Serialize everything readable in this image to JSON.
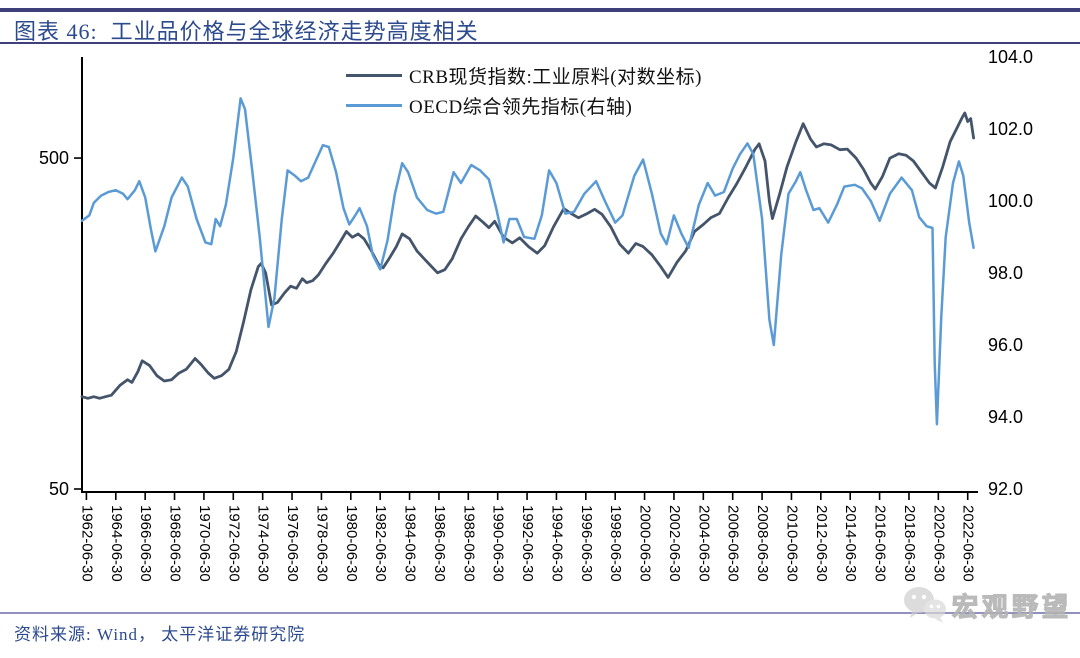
{
  "header": {
    "title": "图表 46:  工业品价格与全球经济走势高度相关"
  },
  "source": {
    "text": "资料来源:  Wind， 太平洋证券研究院"
  },
  "watermark": {
    "text": "宏观野望",
    "icon": "wechat-icon"
  },
  "colors": {
    "accent_bar": "#3f3f7c",
    "title_text": "#2c4a8e",
    "crb_line": "#44546a",
    "oecd_line": "#5b9bd5",
    "axis": "#000000",
    "source_rule": "#9191bd"
  },
  "chart_data": {
    "type": "line",
    "title": "工业品价格与全球经济走势高度相关",
    "legend_position": "top-center",
    "grid": false,
    "x_axis": {
      "first_tick_year": 1962.5,
      "tick_step_years": 2,
      "range_years": [
        1962.2,
        2023.2
      ],
      "tick_labels": [
        "1962-06-30",
        "1964-06-30",
        "1966-06-30",
        "1968-06-30",
        "1970-06-30",
        "1972-06-30",
        "1974-06-30",
        "1976-06-30",
        "1978-06-30",
        "1980-06-30",
        "1982-06-30",
        "1984-06-30",
        "1986-06-30",
        "1988-06-30",
        "1990-06-30",
        "1992-06-30",
        "1994-06-30",
        "1996-06-30",
        "1998-06-30",
        "2000-06-30",
        "2002-06-30",
        "2004-06-30",
        "2006-06-30",
        "2008-06-30",
        "2010-06-30",
        "2012-06-30",
        "2014-06-30",
        "2016-06-30",
        "2018-06-30",
        "2020-06-30",
        "2022-06-30"
      ]
    },
    "left_axis": {
      "scale": "log",
      "range": [
        50,
        1010
      ],
      "ticks": [
        500,
        50
      ],
      "tick_labels": [
        "500",
        "50"
      ]
    },
    "right_axis": {
      "scale": "linear",
      "range": [
        92,
        104
      ],
      "ticks": [
        104,
        102,
        100,
        98,
        96,
        94,
        92
      ],
      "tick_labels": [
        "104.0",
        "102.0",
        "100.0",
        "98.0",
        "96.0",
        "94.0",
        "92.0"
      ]
    },
    "series": [
      {
        "name": "CRB现货指数:工业原料(对数坐标)",
        "axis": "left",
        "color": "#44546a",
        "width": 2.8,
        "points": [
          [
            1962.2,
            95
          ],
          [
            1962.6,
            94
          ],
          [
            1963.0,
            95
          ],
          [
            1963.4,
            94
          ],
          [
            1963.8,
            95
          ],
          [
            1964.2,
            96
          ],
          [
            1964.8,
            103
          ],
          [
            1965.3,
            107
          ],
          [
            1965.6,
            105
          ],
          [
            1966.0,
            113
          ],
          [
            1966.3,
            122
          ],
          [
            1966.8,
            118
          ],
          [
            1967.3,
            110
          ],
          [
            1967.8,
            106
          ],
          [
            1968.3,
            107
          ],
          [
            1968.8,
            112
          ],
          [
            1969.3,
            115
          ],
          [
            1969.9,
            124
          ],
          [
            1970.3,
            119
          ],
          [
            1970.8,
            112
          ],
          [
            1971.2,
            108
          ],
          [
            1971.7,
            110
          ],
          [
            1972.2,
            115
          ],
          [
            1972.7,
            130
          ],
          [
            1973.2,
            160
          ],
          [
            1973.7,
            200
          ],
          [
            1974.2,
            235
          ],
          [
            1974.4,
            240
          ],
          [
            1974.7,
            225
          ],
          [
            1975.1,
            180
          ],
          [
            1975.5,
            183
          ],
          [
            1976.0,
            196
          ],
          [
            1976.4,
            205
          ],
          [
            1976.8,
            202
          ],
          [
            1977.2,
            216
          ],
          [
            1977.5,
            210
          ],
          [
            1977.9,
            213
          ],
          [
            1978.3,
            222
          ],
          [
            1978.8,
            240
          ],
          [
            1979.3,
            258
          ],
          [
            1979.8,
            280
          ],
          [
            1980.2,
            300
          ],
          [
            1980.6,
            288
          ],
          [
            1981.0,
            295
          ],
          [
            1981.4,
            285
          ],
          [
            1981.9,
            262
          ],
          [
            1982.4,
            238
          ],
          [
            1982.7,
            233
          ],
          [
            1983.1,
            248
          ],
          [
            1983.6,
            270
          ],
          [
            1984.0,
            295
          ],
          [
            1984.5,
            285
          ],
          [
            1985.0,
            262
          ],
          [
            1985.5,
            248
          ],
          [
            1986.0,
            235
          ],
          [
            1986.4,
            225
          ],
          [
            1986.9,
            230
          ],
          [
            1987.4,
            248
          ],
          [
            1988.0,
            285
          ],
          [
            1988.5,
            310
          ],
          [
            1989.0,
            334
          ],
          [
            1989.5,
            320
          ],
          [
            1989.9,
            308
          ],
          [
            1990.3,
            322
          ],
          [
            1990.9,
            288
          ],
          [
            1991.5,
            277
          ],
          [
            1992.0,
            287
          ],
          [
            1992.6,
            270
          ],
          [
            1993.2,
            258
          ],
          [
            1993.7,
            272
          ],
          [
            1994.3,
            310
          ],
          [
            1995.0,
            352
          ],
          [
            1995.5,
            340
          ],
          [
            1996.0,
            330
          ],
          [
            1996.6,
            340
          ],
          [
            1997.1,
            350
          ],
          [
            1997.6,
            338
          ],
          [
            1998.2,
            310
          ],
          [
            1998.8,
            275
          ],
          [
            1999.4,
            258
          ],
          [
            1999.9,
            276
          ],
          [
            2000.4,
            270
          ],
          [
            2001.0,
            255
          ],
          [
            2001.6,
            235
          ],
          [
            2002.1,
            218
          ],
          [
            2002.7,
            242
          ],
          [
            2003.3,
            262
          ],
          [
            2003.9,
            300
          ],
          [
            2004.5,
            315
          ],
          [
            2005.0,
            330
          ],
          [
            2005.6,
            340
          ],
          [
            2006.2,
            380
          ],
          [
            2006.8,
            420
          ],
          [
            2007.4,
            470
          ],
          [
            2008.0,
            530
          ],
          [
            2008.3,
            552
          ],
          [
            2008.7,
            490
          ],
          [
            2009.0,
            370
          ],
          [
            2009.2,
            328
          ],
          [
            2009.7,
            390
          ],
          [
            2010.2,
            470
          ],
          [
            2010.8,
            560
          ],
          [
            2011.3,
            635
          ],
          [
            2011.8,
            570
          ],
          [
            2012.2,
            540
          ],
          [
            2012.7,
            552
          ],
          [
            2013.2,
            548
          ],
          [
            2013.8,
            530
          ],
          [
            2014.3,
            532
          ],
          [
            2014.9,
            500
          ],
          [
            2015.4,
            463
          ],
          [
            2015.9,
            420
          ],
          [
            2016.2,
            403
          ],
          [
            2016.7,
            440
          ],
          [
            2017.2,
            500
          ],
          [
            2017.8,
            515
          ],
          [
            2018.3,
            510
          ],
          [
            2018.8,
            490
          ],
          [
            2019.3,
            457
          ],
          [
            2019.9,
            420
          ],
          [
            2020.3,
            406
          ],
          [
            2020.8,
            470
          ],
          [
            2021.3,
            560
          ],
          [
            2021.8,
            620
          ],
          [
            2022.1,
            660
          ],
          [
            2022.3,
            684
          ],
          [
            2022.5,
            645
          ],
          [
            2022.7,
            658
          ],
          [
            2022.9,
            575
          ]
        ]
      },
      {
        "name": "OECD综合领先指标(右轴)",
        "axis": "right",
        "color": "#5b9bd5",
        "width": 2.5,
        "points": [
          [
            1962.2,
            99.45
          ],
          [
            1962.7,
            99.6
          ],
          [
            1963.0,
            99.95
          ],
          [
            1963.5,
            100.15
          ],
          [
            1964.0,
            100.25
          ],
          [
            1964.5,
            100.3
          ],
          [
            1965.0,
            100.2
          ],
          [
            1965.3,
            100.05
          ],
          [
            1965.8,
            100.3
          ],
          [
            1966.1,
            100.55
          ],
          [
            1966.5,
            100.1
          ],
          [
            1966.9,
            99.2
          ],
          [
            1967.2,
            98.6
          ],
          [
            1967.8,
            99.3
          ],
          [
            1968.3,
            100.1
          ],
          [
            1969.0,
            100.65
          ],
          [
            1969.4,
            100.4
          ],
          [
            1970.0,
            99.5
          ],
          [
            1970.6,
            98.85
          ],
          [
            1971.0,
            98.8
          ],
          [
            1971.3,
            99.5
          ],
          [
            1971.6,
            99.3
          ],
          [
            1972.0,
            99.9
          ],
          [
            1972.5,
            101.2
          ],
          [
            1973.0,
            102.85
          ],
          [
            1973.3,
            102.55
          ],
          [
            1973.8,
            100.8
          ],
          [
            1974.3,
            99.0
          ],
          [
            1974.9,
            96.5
          ],
          [
            1975.3,
            97.3
          ],
          [
            1975.8,
            99.5
          ],
          [
            1976.2,
            100.85
          ],
          [
            1976.7,
            100.7
          ],
          [
            1977.1,
            100.55
          ],
          [
            1977.6,
            100.65
          ],
          [
            1978.1,
            101.1
          ],
          [
            1978.6,
            101.55
          ],
          [
            1979.0,
            101.5
          ],
          [
            1979.5,
            100.8
          ],
          [
            1980.0,
            99.8
          ],
          [
            1980.4,
            99.35
          ],
          [
            1980.8,
            99.6
          ],
          [
            1981.1,
            99.8
          ],
          [
            1981.6,
            99.3
          ],
          [
            1982.0,
            98.5
          ],
          [
            1982.5,
            98.1
          ],
          [
            1983.0,
            98.9
          ],
          [
            1983.5,
            100.2
          ],
          [
            1984.0,
            101.05
          ],
          [
            1984.4,
            100.8
          ],
          [
            1985.0,
            100.1
          ],
          [
            1985.7,
            99.75
          ],
          [
            1986.3,
            99.65
          ],
          [
            1986.8,
            99.7
          ],
          [
            1987.5,
            100.8
          ],
          [
            1988.0,
            100.5
          ],
          [
            1988.7,
            101.0
          ],
          [
            1989.3,
            100.85
          ],
          [
            1989.9,
            100.6
          ],
          [
            1990.4,
            99.8
          ],
          [
            1990.9,
            98.85
          ],
          [
            1991.3,
            99.5
          ],
          [
            1991.8,
            99.5
          ],
          [
            1992.3,
            99.0
          ],
          [
            1993.0,
            98.95
          ],
          [
            1993.5,
            99.6
          ],
          [
            1994.0,
            100.85
          ],
          [
            1994.5,
            100.5
          ],
          [
            1995.1,
            99.65
          ],
          [
            1995.7,
            99.7
          ],
          [
            1996.4,
            100.2
          ],
          [
            1997.2,
            100.55
          ],
          [
            1997.8,
            100.0
          ],
          [
            1998.5,
            99.4
          ],
          [
            1999.0,
            99.6
          ],
          [
            1999.8,
            100.7
          ],
          [
            2000.4,
            101.15
          ],
          [
            2001.0,
            100.2
          ],
          [
            2001.6,
            99.1
          ],
          [
            2002.0,
            98.8
          ],
          [
            2002.5,
            99.6
          ],
          [
            2003.0,
            99.1
          ],
          [
            2003.5,
            98.7
          ],
          [
            2004.2,
            99.9
          ],
          [
            2004.8,
            100.5
          ],
          [
            2005.3,
            100.15
          ],
          [
            2005.9,
            100.25
          ],
          [
            2006.5,
            100.9
          ],
          [
            2007.0,
            101.3
          ],
          [
            2007.5,
            101.6
          ],
          [
            2007.9,
            101.3
          ],
          [
            2008.5,
            99.5
          ],
          [
            2009.0,
            96.7
          ],
          [
            2009.3,
            96.0
          ],
          [
            2009.8,
            98.5
          ],
          [
            2010.3,
            100.2
          ],
          [
            2010.8,
            100.55
          ],
          [
            2011.1,
            100.8
          ],
          [
            2011.5,
            100.3
          ],
          [
            2012.0,
            99.75
          ],
          [
            2012.4,
            99.8
          ],
          [
            2013.0,
            99.4
          ],
          [
            2013.6,
            99.9
          ],
          [
            2014.1,
            100.4
          ],
          [
            2014.8,
            100.45
          ],
          [
            2015.3,
            100.35
          ],
          [
            2015.9,
            100.0
          ],
          [
            2016.5,
            99.45
          ],
          [
            2017.2,
            100.2
          ],
          [
            2018.0,
            100.65
          ],
          [
            2018.7,
            100.3
          ],
          [
            2019.2,
            99.55
          ],
          [
            2019.7,
            99.3
          ],
          [
            2020.1,
            99.25
          ],
          [
            2020.25,
            95.5
          ],
          [
            2020.4,
            93.8
          ],
          [
            2020.7,
            96.8
          ],
          [
            2021.0,
            99.0
          ],
          [
            2021.5,
            100.5
          ],
          [
            2021.9,
            101.1
          ],
          [
            2022.2,
            100.7
          ],
          [
            2022.6,
            99.4
          ],
          [
            2022.9,
            98.7
          ]
        ]
      }
    ]
  }
}
